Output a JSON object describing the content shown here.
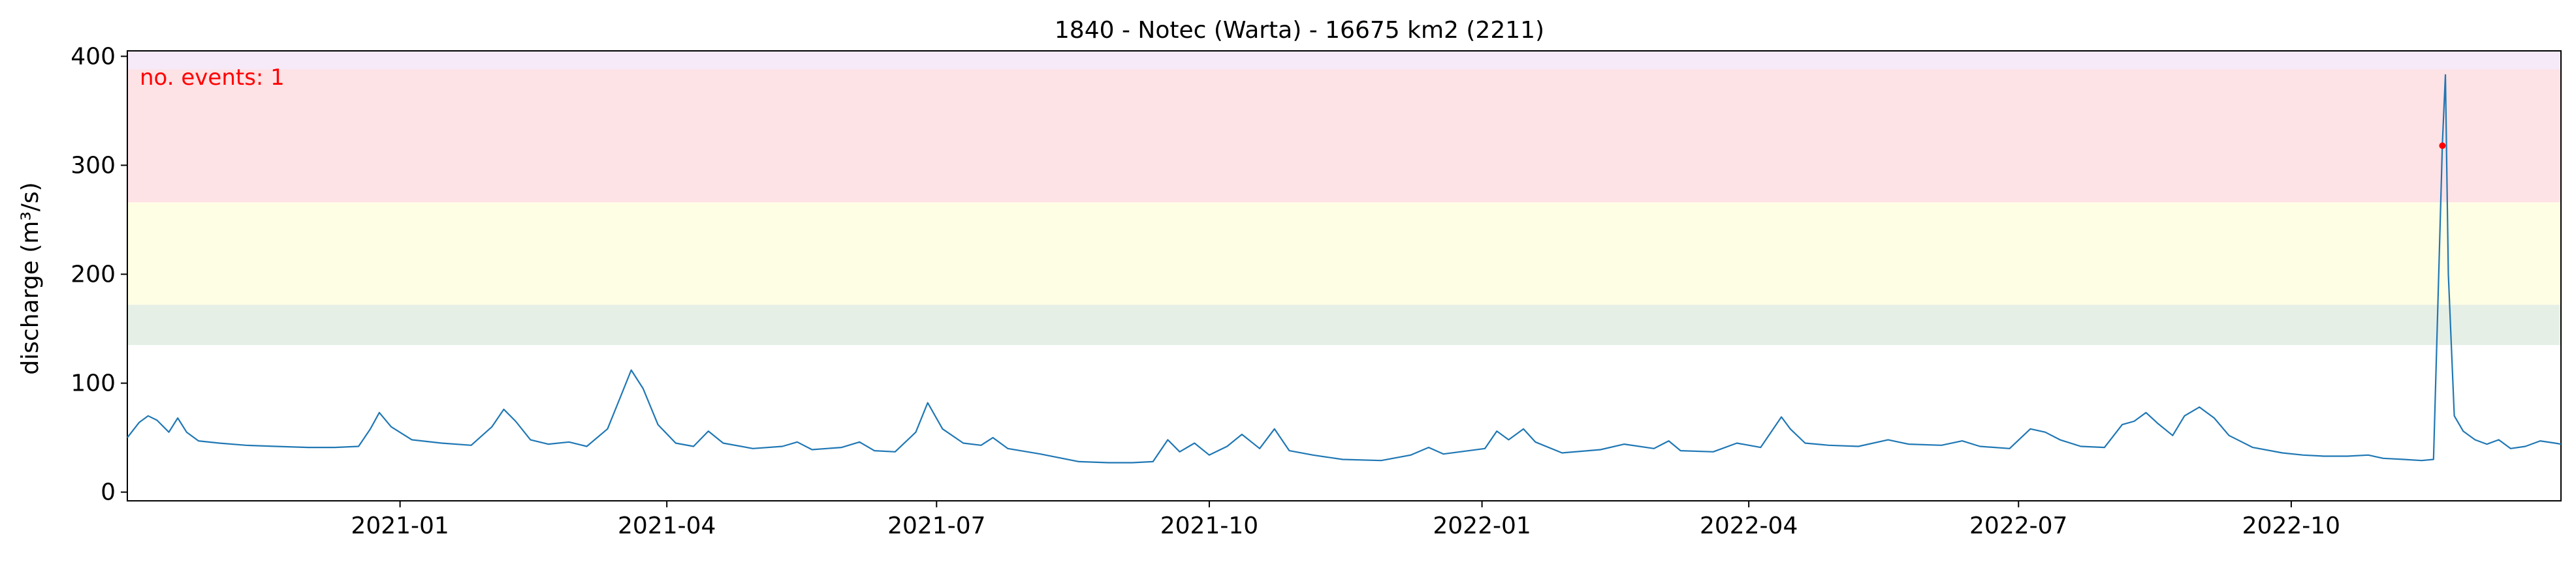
{
  "chart_data": {
    "type": "line",
    "title": "1840 - Notec (Warta) - 16675 km2 (2211)",
    "xlabel": "",
    "ylabel": "discharge (m³/s)",
    "xlim": [
      "2020-10-01",
      "2022-12-31"
    ],
    "ylim": [
      -8,
      405
    ],
    "x_ticks": [
      "2021-01",
      "2021-04",
      "2021-07",
      "2021-10",
      "2022-01",
      "2022-04",
      "2022-07",
      "2022-10"
    ],
    "y_ticks": [
      0,
      100,
      200,
      300,
      400
    ],
    "grid": false,
    "annotation": "no. events: 1",
    "threshold_bands": [
      {
        "from": 135,
        "to": 172,
        "color": "#e6efe6"
      },
      {
        "from": 172,
        "to": 266,
        "color": "#fefee4"
      },
      {
        "from": 266,
        "to": 388,
        "color": "#fde2e6"
      },
      {
        "from": 388,
        "to": 405,
        "color": "#f6eaf8"
      }
    ],
    "series": [
      {
        "color": "#1f77b4",
        "points": [
          [
            "2020-10-01",
            50
          ],
          [
            "2020-10-05",
            64
          ],
          [
            "2020-10-08",
            70
          ],
          [
            "2020-10-11",
            66
          ],
          [
            "2020-10-15",
            55
          ],
          [
            "2020-10-18",
            68
          ],
          [
            "2020-10-21",
            55
          ],
          [
            "2020-10-25",
            47
          ],
          [
            "2020-11-01",
            45
          ],
          [
            "2020-11-10",
            43
          ],
          [
            "2020-11-20",
            42
          ],
          [
            "2020-12-01",
            41
          ],
          [
            "2020-12-10",
            41
          ],
          [
            "2020-12-18",
            42
          ],
          [
            "2020-12-22",
            58
          ],
          [
            "2020-12-25",
            73
          ],
          [
            "2020-12-29",
            60
          ],
          [
            "2021-01-05",
            48
          ],
          [
            "2021-01-15",
            45
          ],
          [
            "2021-01-25",
            43
          ],
          [
            "2021-02-01",
            60
          ],
          [
            "2021-02-05",
            76
          ],
          [
            "2021-02-09",
            65
          ],
          [
            "2021-02-14",
            48
          ],
          [
            "2021-02-20",
            44
          ],
          [
            "2021-02-27",
            46
          ],
          [
            "2021-03-05",
            42
          ],
          [
            "2021-03-12",
            58
          ],
          [
            "2021-03-16",
            85
          ],
          [
            "2021-03-20",
            112
          ],
          [
            "2021-03-24",
            95
          ],
          [
            "2021-03-29",
            62
          ],
          [
            "2021-04-04",
            45
          ],
          [
            "2021-04-10",
            42
          ],
          [
            "2021-04-15",
            56
          ],
          [
            "2021-04-20",
            45
          ],
          [
            "2021-04-30",
            40
          ],
          [
            "2021-05-10",
            42
          ],
          [
            "2021-05-15",
            46
          ],
          [
            "2021-05-20",
            39
          ],
          [
            "2021-05-30",
            41
          ],
          [
            "2021-06-05",
            46
          ],
          [
            "2021-06-10",
            38
          ],
          [
            "2021-06-17",
            37
          ],
          [
            "2021-06-24",
            55
          ],
          [
            "2021-06-28",
            82
          ],
          [
            "2021-07-03",
            58
          ],
          [
            "2021-07-10",
            45
          ],
          [
            "2021-07-16",
            43
          ],
          [
            "2021-07-20",
            50
          ],
          [
            "2021-07-25",
            40
          ],
          [
            "2021-08-05",
            35
          ],
          [
            "2021-08-18",
            28
          ],
          [
            "2021-08-28",
            27
          ],
          [
            "2021-09-05",
            27
          ],
          [
            "2021-09-12",
            28
          ],
          [
            "2021-09-17",
            48
          ],
          [
            "2021-09-21",
            37
          ],
          [
            "2021-09-26",
            45
          ],
          [
            "2021-10-01",
            34
          ],
          [
            "2021-10-07",
            42
          ],
          [
            "2021-10-12",
            53
          ],
          [
            "2021-10-18",
            40
          ],
          [
            "2021-10-23",
            58
          ],
          [
            "2021-10-28",
            38
          ],
          [
            "2021-11-05",
            34
          ],
          [
            "2021-11-15",
            30
          ],
          [
            "2021-11-28",
            29
          ],
          [
            "2021-12-08",
            34
          ],
          [
            "2021-12-14",
            41
          ],
          [
            "2021-12-19",
            35
          ],
          [
            "2022-01-02",
            40
          ],
          [
            "2022-01-06",
            56
          ],
          [
            "2022-01-10",
            48
          ],
          [
            "2022-01-15",
            58
          ],
          [
            "2022-01-19",
            46
          ],
          [
            "2022-01-28",
            36
          ],
          [
            "2022-02-10",
            39
          ],
          [
            "2022-02-18",
            44
          ],
          [
            "2022-02-28",
            40
          ],
          [
            "2022-03-05",
            47
          ],
          [
            "2022-03-09",
            38
          ],
          [
            "2022-03-20",
            37
          ],
          [
            "2022-03-28",
            45
          ],
          [
            "2022-04-05",
            41
          ],
          [
            "2022-04-12",
            69
          ],
          [
            "2022-04-15",
            58
          ],
          [
            "2022-04-20",
            45
          ],
          [
            "2022-04-28",
            43
          ],
          [
            "2022-05-08",
            42
          ],
          [
            "2022-05-18",
            48
          ],
          [
            "2022-05-25",
            44
          ],
          [
            "2022-06-05",
            43
          ],
          [
            "2022-06-12",
            47
          ],
          [
            "2022-06-18",
            42
          ],
          [
            "2022-06-28",
            40
          ],
          [
            "2022-07-05",
            58
          ],
          [
            "2022-07-10",
            55
          ],
          [
            "2022-07-15",
            48
          ],
          [
            "2022-07-22",
            42
          ],
          [
            "2022-07-30",
            41
          ],
          [
            "2022-08-05",
            62
          ],
          [
            "2022-08-09",
            65
          ],
          [
            "2022-08-13",
            73
          ],
          [
            "2022-08-17",
            63
          ],
          [
            "2022-08-22",
            52
          ],
          [
            "2022-08-26",
            70
          ],
          [
            "2022-08-31",
            78
          ],
          [
            "2022-09-05",
            68
          ],
          [
            "2022-09-10",
            52
          ],
          [
            "2022-09-18",
            41
          ],
          [
            "2022-09-28",
            36
          ],
          [
            "2022-10-05",
            34
          ],
          [
            "2022-10-12",
            33
          ],
          [
            "2022-10-20",
            33
          ],
          [
            "2022-10-27",
            34
          ],
          [
            "2022-11-01",
            31
          ],
          [
            "2022-11-08",
            30
          ],
          [
            "2022-11-14",
            29
          ],
          [
            "2022-11-18",
            30
          ],
          [
            "2022-11-21",
            320
          ],
          [
            "2022-11-22",
            383
          ],
          [
            "2022-11-23",
            200
          ],
          [
            "2022-11-25",
            70
          ],
          [
            "2022-11-28",
            56
          ],
          [
            "2022-12-02",
            48
          ],
          [
            "2022-12-06",
            44
          ],
          [
            "2022-12-10",
            48
          ],
          [
            "2022-12-14",
            40
          ],
          [
            "2022-12-19",
            42
          ],
          [
            "2022-12-24",
            47
          ],
          [
            "2022-12-29",
            45
          ],
          [
            "2022-12-31",
            44
          ]
        ]
      }
    ],
    "event_marker": {
      "x": "2022-11-21",
      "y": 318,
      "color": "#ff0000"
    }
  }
}
